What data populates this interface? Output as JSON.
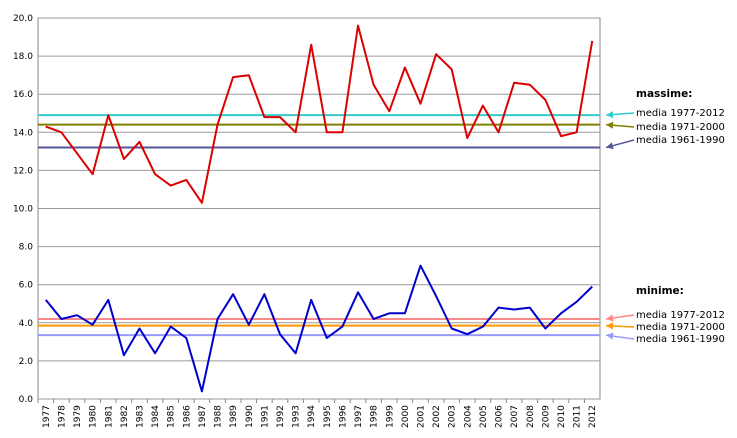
{
  "chart_data": {
    "type": "line",
    "x": [
      "1977",
      "1978",
      "1979",
      "1980",
      "1981",
      "1982",
      "1983",
      "1984",
      "1985",
      "1986",
      "1987",
      "1988",
      "1989",
      "1990",
      "1991",
      "1992",
      "1993",
      "1994",
      "1995",
      "1996",
      "1997",
      "1998",
      "1999",
      "2000",
      "2001",
      "2002",
      "2003",
      "2004",
      "2005",
      "2006",
      "2007",
      "2008",
      "2009",
      "2010",
      "2011",
      "2012"
    ],
    "ylim": [
      0,
      20
    ],
    "yticks": [
      "0.0",
      "2.0",
      "4.0",
      "6.0",
      "8.0",
      "10.0",
      "12.0",
      "14.0",
      "16.0",
      "18.0",
      "20.0"
    ],
    "grid": "horizontal",
    "series": [
      {
        "color": "#dd0000",
        "values": [
          14.3,
          14.0,
          12.9,
          11.8,
          14.9,
          12.6,
          13.5,
          11.8,
          11.2,
          11.5,
          10.3,
          14.4,
          16.9,
          17.0,
          14.8,
          14.8,
          14.0,
          18.6,
          14.0,
          14.0,
          19.6,
          16.5,
          15.1,
          17.4,
          15.5,
          18.1,
          17.3,
          13.7,
          15.4,
          14.0,
          16.6,
          16.5,
          15.7,
          13.8,
          14.0,
          18.8
        ]
      },
      {
        "color": "#0000cc",
        "values": [
          5.2,
          4.2,
          4.4,
          3.9,
          5.2,
          2.3,
          3.7,
          2.4,
          3.8,
          3.2,
          0.4,
          4.2,
          5.5,
          3.9,
          5.5,
          3.4,
          2.4,
          5.2,
          3.2,
          3.8,
          5.6,
          4.2,
          4.5,
          4.5,
          7.0,
          5.4,
          3.7,
          3.4,
          3.8,
          4.8,
          4.7,
          4.8,
          3.7,
          4.5,
          5.1,
          5.9
        ]
      }
    ],
    "reference_lines": [
      {
        "group": "max",
        "label": "media 1977-2012",
        "value": 14.9,
        "color": "#33cccc"
      },
      {
        "group": "max",
        "label": "media 1971-2000",
        "value": 14.4,
        "color": "#808000"
      },
      {
        "group": "max",
        "label": "media 1961-1990",
        "value": 13.2,
        "color": "#555599"
      },
      {
        "group": "min",
        "label": "media 1977-2012",
        "value": 4.2,
        "color": "#ff8888"
      },
      {
        "group": "min",
        "label": "media 1971-2000",
        "value": 3.85,
        "color": "#ff9900"
      },
      {
        "group": "min",
        "label": "media 1961-1990",
        "value": 3.35,
        "color": "#9999ff"
      }
    ],
    "legend": {
      "max_title": "massime:",
      "min_title": "minime:"
    }
  }
}
